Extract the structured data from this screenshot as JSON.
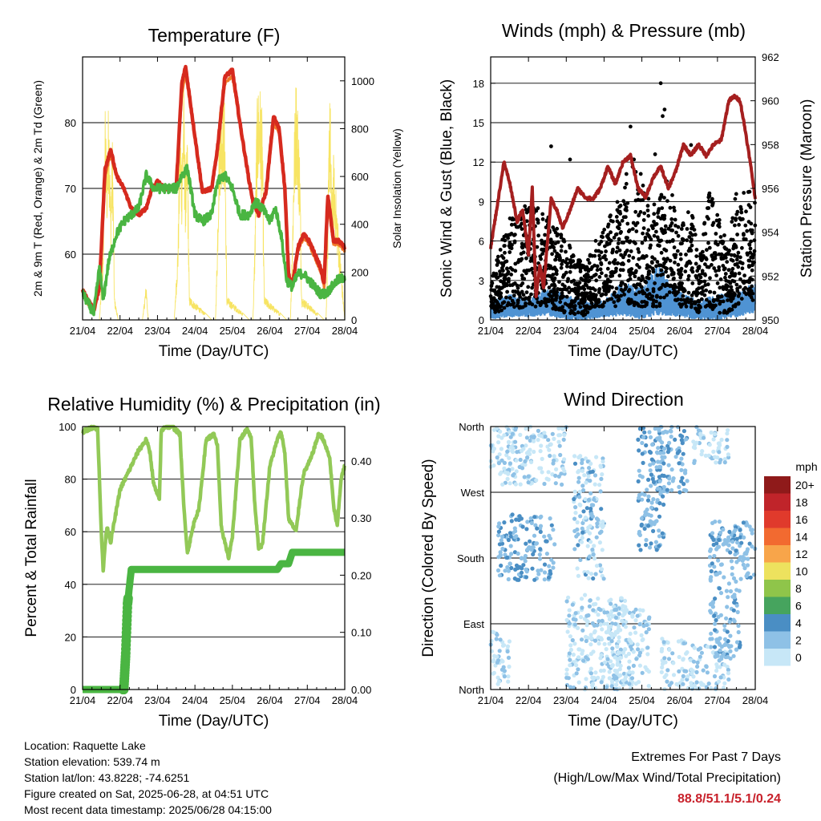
{
  "chart_data": [
    {
      "type": "line",
      "title": "Temperature (F)",
      "xlabel": "Time (Day/UTC)",
      "ylabel": "2m & 9m T (Red, Orange) & 2m Td (Green)",
      "ylabel_right": "Solar Insolation (Yellow)",
      "x_ticks": [
        "21/04",
        "22/04",
        "23/04",
        "24/04",
        "25/04",
        "26/04",
        "27/04",
        "28/04"
      ],
      "y_ticks": [
        "60",
        "70",
        "80"
      ],
      "ylim": [
        50,
        90
      ],
      "y2_ticks": [
        "0",
        "200",
        "400",
        "600",
        "800",
        "1000"
      ],
      "y2lim": [
        0,
        1100
      ],
      "grid": true,
      "series": [
        {
          "color": "#d62a1e",
          "x": [
            0,
            0.3,
            0.45,
            0.6,
            0.75,
            0.9,
            1.1,
            1.3,
            1.5,
            1.7,
            1.85,
            2,
            2.2,
            2.5,
            2.65,
            2.75,
            2.95,
            3.2,
            3.45,
            3.6,
            3.8,
            4,
            4.2,
            4.45,
            4.55,
            4.7,
            4.9,
            5.1,
            5.25,
            5.4,
            5.5,
            5.6,
            5.75,
            5.9,
            6.05,
            6.2,
            6.35,
            6.45,
            6.55,
            6.7,
            6.85,
            7
          ],
          "y": [
            54.5,
            51.5,
            55,
            73,
            76,
            72,
            70,
            67,
            66,
            67,
            70,
            71,
            70,
            70,
            86,
            88.5,
            80,
            69.5,
            70,
            76,
            87,
            88,
            80,
            71,
            68,
            66,
            69.5,
            81,
            79,
            70,
            57,
            55,
            61,
            63,
            62,
            60,
            58,
            55.5,
            69,
            62,
            62,
            61
          ]
        },
        {
          "color": "#f07a2a",
          "x": [
            0,
            0.3,
            0.45,
            0.6,
            0.75,
            0.9,
            1.1,
            1.3,
            1.5,
            1.7,
            1.85,
            2,
            2.2,
            2.5,
            2.65,
            2.75,
            2.95,
            3.2,
            3.45,
            3.6,
            3.8,
            4,
            4.2,
            4.45,
            4.55,
            4.7,
            4.9,
            5.1,
            5.25,
            5.4,
            5.5,
            5.6,
            5.75,
            5.9,
            6.05,
            6.2,
            6.35,
            6.45,
            6.55,
            6.7,
            6.85,
            7
          ],
          "y": [
            54,
            51,
            55,
            72,
            75,
            72,
            70,
            67,
            66,
            67,
            70,
            71,
            70,
            70,
            84.5,
            87.5,
            80,
            69.5,
            70,
            76,
            86,
            87,
            80,
            71,
            68,
            66,
            69.5,
            80,
            78.5,
            70,
            57,
            55,
            60.5,
            62.5,
            61.5,
            59.5,
            57.5,
            55,
            68,
            61.5,
            61.5,
            60.5
          ]
        },
        {
          "color": "#4ab542",
          "x": [
            0,
            0.3,
            0.45,
            0.55,
            0.7,
            0.9,
            1.1,
            1.3,
            1.5,
            1.7,
            1.9,
            2,
            2.2,
            2.5,
            2.65,
            2.8,
            3,
            3.2,
            3.45,
            3.6,
            3.8,
            4,
            4.2,
            4.45,
            4.6,
            4.8,
            5,
            5.15,
            5.3,
            5.45,
            5.6,
            5.75,
            5.9,
            6.05,
            6.2,
            6.35,
            6.5,
            6.65,
            6.8,
            7
          ],
          "y": [
            54,
            51,
            58,
            53,
            59,
            63,
            65,
            66,
            67,
            72,
            70,
            70,
            70,
            70,
            72,
            73,
            66,
            65,
            66,
            71,
            72,
            70,
            66,
            66,
            68,
            67,
            65,
            67,
            63,
            56,
            55,
            57,
            57,
            56,
            55,
            54,
            54,
            55,
            56,
            56.5
          ]
        }
      ],
      "insolation": {
        "color": "#f7e463",
        "x": [
          0,
          0.45,
          0.55,
          0.6,
          0.65,
          0.7,
          0.75,
          0.8,
          0.85,
          0.95,
          1.6,
          1.7,
          1.75,
          2.45,
          2.55,
          2.6,
          2.65,
          2.7,
          2.75,
          2.8,
          2.85,
          3.45,
          3.55,
          3.6,
          3.65,
          3.7,
          3.75,
          3.8,
          3.85,
          4.45,
          4.55,
          4.6,
          4.65,
          4.7,
          4.75,
          4.8,
          4.85,
          5.45,
          5.55,
          5.6,
          5.65,
          5.7,
          5.75,
          5.8,
          5.85,
          6.45,
          6.5,
          6.55,
          6.6,
          6.65,
          6.7,
          7
        ],
        "y": [
          0,
          0,
          300,
          900,
          700,
          960,
          500,
          800,
          100,
          0,
          0,
          160,
          0,
          0,
          350,
          900,
          700,
          1000,
          600,
          800,
          100,
          0,
          0,
          360,
          900,
          980,
          1000,
          900,
          100,
          0,
          0,
          350,
          900,
          1000,
          980,
          850,
          100,
          0,
          0,
          350,
          800,
          1050,
          900,
          700,
          100,
          0,
          0,
          400,
          1100,
          500,
          700,
          0
        ]
      }
    },
    {
      "type": "line",
      "title": "Winds (mph) & Pressure (mb)",
      "xlabel": "Time (Day/UTC)",
      "ylabel": "Sonic Wind & Gust (Blue, Black)",
      "ylabel_right": "Station Pressure (Maroon)",
      "x_ticks": [
        "21/04",
        "22/04",
        "23/04",
        "24/04",
        "25/04",
        "26/04",
        "27/04",
        "28/04"
      ],
      "y_ticks": [
        "0",
        "3",
        "6",
        "9",
        "12",
        "15",
        "18"
      ],
      "ylim": [
        0,
        20
      ],
      "y2_ticks": [
        "950",
        "952",
        "954",
        "956",
        "958",
        "960",
        "962"
      ],
      "y2lim": [
        950,
        962
      ],
      "grid": true,
      "pressure": {
        "color": "#a51f1f",
        "x": [
          0,
          0.2,
          0.35,
          0.5,
          0.7,
          0.85,
          1,
          1.1,
          1.2,
          1.3,
          1.4,
          1.5,
          1.6,
          1.75,
          1.9,
          2.1,
          2.3,
          2.5,
          2.7,
          2.9,
          3.1,
          3.3,
          3.5,
          3.7,
          3.9,
          4.1,
          4.3,
          4.5,
          4.7,
          4.9,
          5.1,
          5.3,
          5.5,
          5.7,
          5.9,
          6.1,
          6.3,
          6.45,
          6.6,
          6.75,
          6.9,
          7
        ],
        "y": [
          953.3,
          955.5,
          957.2,
          956.3,
          954.5,
          955,
          953,
          956,
          951,
          952.5,
          951.5,
          953.5,
          955.5,
          955,
          954.2,
          955,
          956,
          955.6,
          955.5,
          956,
          957,
          956.2,
          957.2,
          957.5,
          956,
          955.6,
          956.5,
          957,
          956,
          956.8,
          958,
          957.5,
          958,
          957.5,
          958,
          958.2,
          960,
          960.2,
          960,
          958.5,
          956.8,
          955.5
        ]
      },
      "gust_band": {
        "color": "#000000",
        "x": [
          0,
          0.5,
          1,
          1.5,
          2,
          2.5,
          2.7,
          3,
          3.3,
          3.5,
          3.7,
          4,
          4.2,
          4.5,
          4.7,
          5,
          5.3,
          5.5,
          5.8,
          6,
          6.3,
          6.5,
          6.8,
          7
        ],
        "low": [
          0.5,
          0.8,
          1,
          1,
          0.5,
          0.3,
          1,
          1,
          1,
          2,
          1,
          1,
          1,
          1,
          2,
          1,
          1,
          0.5,
          1,
          0.5,
          0.5,
          1,
          2,
          1
        ],
        "high": [
          3,
          8,
          9,
          8,
          6,
          4,
          6,
          7,
          9,
          10,
          13,
          11,
          9,
          10,
          11,
          7,
          9,
          5,
          10,
          8,
          6,
          10,
          10,
          9
        ]
      },
      "wind_band": {
        "color": "#4f93d3",
        "x": [
          0,
          0.5,
          1,
          1.5,
          2,
          2.5,
          3,
          3.5,
          3.7,
          4,
          4.2,
          4.5,
          4.7,
          5,
          5.5,
          6,
          6.5,
          7
        ],
        "low": [
          0,
          0.2,
          0.2,
          0.3,
          0,
          0,
          0.2,
          0.3,
          0.2,
          0,
          0.2,
          0.3,
          0.3,
          0.2,
          0,
          0,
          0.2,
          0.5
        ],
        "high": [
          1.5,
          2,
          1.5,
          2.5,
          2,
          1.5,
          1.5,
          3,
          2.8,
          2.5,
          3.5,
          4.5,
          3,
          2.2,
          1.5,
          2,
          2,
          3
        ]
      }
    },
    {
      "type": "line",
      "title": "Relative Humidity (%) & Precipitation (in)",
      "xlabel": "Time (Day/UTC)",
      "ylabel": "Percent & Total Rainfall",
      "x_ticks": [
        "21/04",
        "22/04",
        "23/04",
        "24/04",
        "25/04",
        "26/04",
        "27/04",
        "28/04"
      ],
      "y_ticks": [
        "0",
        "20",
        "40",
        "60",
        "80",
        "100"
      ],
      "ylim": [
        0,
        100
      ],
      "y2_ticks": [
        "0.00",
        "0.10",
        "0.20",
        "0.30",
        "0.40"
      ],
      "y2lim": [
        0,
        0.46
      ],
      "grid": true,
      "series": [
        {
          "color": "#92c957",
          "x": [
            0,
            0.3,
            0.4,
            0.45,
            0.5,
            0.55,
            0.6,
            0.65,
            0.75,
            0.9,
            1,
            1.2,
            1.5,
            1.7,
            1.8,
            1.9,
            2.05,
            2.1,
            2.2,
            2.4,
            2.6,
            2.7,
            2.8,
            3,
            3.1,
            3.3,
            3.5,
            3.6,
            3.7,
            3.9,
            4,
            4.2,
            4.4,
            4.5,
            4.6,
            4.7,
            4.8,
            5,
            5.1,
            5.2,
            5.3,
            5.4,
            5.5,
            5.7,
            5.8,
            5.9,
            6.1,
            6.3,
            6.4,
            6.6,
            6.7,
            6.8,
            6.9,
            7
          ],
          "y": [
            98,
            100,
            99,
            80,
            60,
            45,
            55,
            62,
            56,
            68,
            76,
            82,
            91,
            95,
            90,
            78,
            72,
            98,
            100,
            100,
            97,
            70,
            52,
            65,
            68,
            95,
            97,
            93,
            62,
            50,
            58,
            95,
            99,
            96,
            70,
            54,
            55,
            85,
            90,
            95,
            98,
            90,
            65,
            60,
            72,
            82,
            88,
            97,
            96,
            88,
            70,
            62,
            80,
            85
          ]
        },
        {
          "color": "#4ab542",
          "x": [
            0,
            1.1,
            1.15,
            1.2,
            1.3,
            1.5,
            5.2,
            5.3,
            5.5,
            5.6,
            7
          ],
          "y": [
            0,
            0,
            0.06,
            0.15,
            0.21,
            0.21,
            0.21,
            0.22,
            0.22,
            0.24,
            0.24
          ]
        }
      ]
    },
    {
      "type": "scatter",
      "title": "Wind Direction",
      "xlabel": "Time (Day/UTC)",
      "ylabel": "Direction (Colored By Speed)",
      "x_ticks": [
        "21/04",
        "22/04",
        "23/04",
        "24/04",
        "25/04",
        "26/04",
        "27/04",
        "28/04"
      ],
      "y_ticks": [
        "North",
        "East",
        "South",
        "West",
        "North"
      ],
      "ylim": [
        0,
        360
      ],
      "grid": true,
      "legend_title": "mph",
      "legend_labels": [
        "20+",
        "18",
        "16",
        "14",
        "12",
        "10",
        "8",
        "6",
        "4",
        "2",
        "0"
      ],
      "legend_colors": [
        "#8f1a1a",
        "#c0242a",
        "#e03a2c",
        "#f26a30",
        "#f8a54a",
        "#ede25e",
        "#8fc54a",
        "#46a45e",
        "#4a8ec4",
        "#8ec1e6",
        "#c7e7f7"
      ],
      "clusters": [
        {
          "x": [
            0,
            0.5
          ],
          "dir": [
            0,
            80
          ],
          "speed": [
            0,
            3
          ]
        },
        {
          "x": [
            0.2,
            1.7
          ],
          "dir": [
            150,
            240
          ],
          "speed": [
            1,
            5
          ]
        },
        {
          "x": [
            0,
            2.0
          ],
          "dir": [
            280,
            360
          ],
          "speed": [
            0,
            2
          ]
        },
        {
          "x": [
            2.0,
            3.6
          ],
          "dir": [
            0,
            130
          ],
          "speed": [
            0,
            2
          ]
        },
        {
          "x": [
            2.2,
            3.0
          ],
          "dir": [
            150,
            320
          ],
          "speed": [
            0,
            4
          ]
        },
        {
          "x": [
            3.2,
            4.2
          ],
          "dir": [
            0,
            110
          ],
          "speed": [
            0,
            2
          ]
        },
        {
          "x": [
            3.9,
            4.6
          ],
          "dir": [
            190,
            360
          ],
          "speed": [
            1,
            5
          ]
        },
        {
          "x": [
            4.4,
            5.2
          ],
          "dir": [
            270,
            360
          ],
          "speed": [
            1,
            4
          ]
        },
        {
          "x": [
            4.5,
            6.3
          ],
          "dir": [
            0,
            70
          ],
          "speed": [
            0,
            2
          ]
        },
        {
          "x": [
            5.3,
            6.3
          ],
          "dir": [
            310,
            360
          ],
          "speed": [
            0,
            2
          ]
        },
        {
          "x": [
            5.8,
            6.6
          ],
          "dir": [
            40,
            230
          ],
          "speed": [
            1,
            4
          ]
        },
        {
          "x": [
            6.6,
            7.0
          ],
          "dir": [
            150,
            230
          ],
          "speed": [
            1,
            4
          ]
        }
      ]
    }
  ],
  "info": {
    "location": "Location: Raquette Lake",
    "elevation": "Station elevation: 539.74 m",
    "latlon": "Station lat/lon: 43.8228; -74.6251",
    "created": "Figure created on Sat, 2025-06-28, at 04:51 UTC",
    "recent": "Most recent data timestamp: 2025/06/28 04:15:00"
  },
  "extremes": {
    "line1": "Extremes For Past 7 Days",
    "line2": "(High/Low/Max Wind/Total Precipitation)",
    "values": "88.8/51.1/5.1/0.24"
  }
}
